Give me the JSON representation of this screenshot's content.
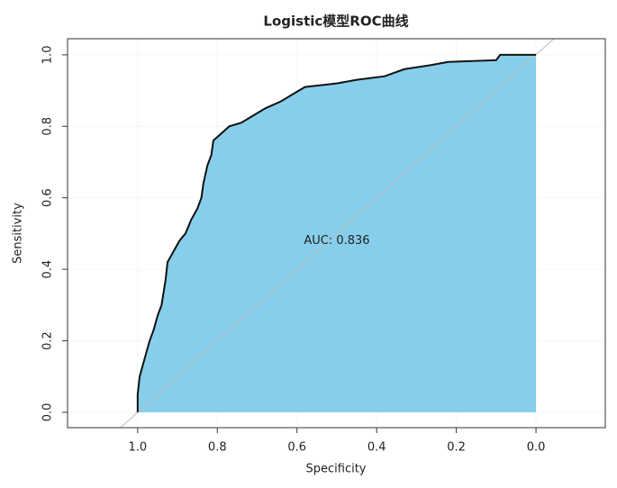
{
  "chart_data": {
    "type": "roc",
    "title": "Logistic模型ROC曲线",
    "x_label": "Specificity",
    "y_label": "Sensitivity",
    "annotation": "AUC: 0.836",
    "xlim": [
      1.176,
      -0.174
    ],
    "ylim": [
      -0.043,
      1.045
    ],
    "xticks": [
      {
        "value": 1.0,
        "label": "1.0"
      },
      0.8,
      0.6,
      0.4,
      0.2,
      {
        "value": 0.0,
        "label": "0.0"
      }
    ],
    "yticks": [
      {
        "value": 0.0,
        "label": "0.0"
      },
      0.2,
      0.4,
      0.6,
      0.8,
      {
        "value": 1.0,
        "label": "1.0"
      }
    ],
    "grid": true,
    "color": "#87ceeb",
    "x": [
      1.0,
      1.0,
      0.995,
      0.99,
      0.98,
      0.97,
      0.96,
      0.95,
      0.94,
      0.93,
      0.925,
      0.91,
      0.895,
      0.88,
      0.865,
      0.85,
      0.84,
      0.835,
      0.825,
      0.815,
      0.81,
      0.79,
      0.77,
      0.74,
      0.71,
      0.68,
      0.64,
      0.61,
      0.58,
      0.5,
      0.45,
      0.38,
      0.33,
      0.27,
      0.22,
      0.1,
      0.09,
      0.0
    ],
    "y": [
      0.0,
      0.05,
      0.1,
      0.12,
      0.16,
      0.2,
      0.23,
      0.27,
      0.3,
      0.37,
      0.42,
      0.45,
      0.48,
      0.5,
      0.54,
      0.57,
      0.6,
      0.64,
      0.69,
      0.72,
      0.76,
      0.78,
      0.8,
      0.81,
      0.83,
      0.85,
      0.87,
      0.89,
      0.91,
      0.92,
      0.93,
      0.94,
      0.96,
      0.97,
      0.98,
      0.985,
      1.0,
      1.0
    ]
  }
}
